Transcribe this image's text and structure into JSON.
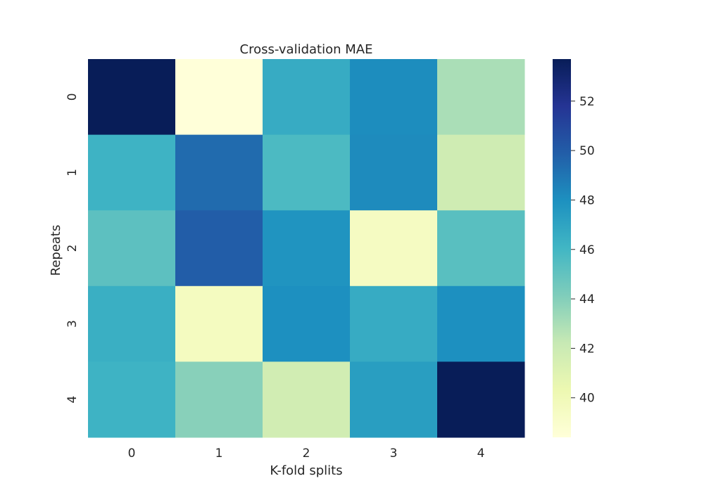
{
  "chart_data": {
    "type": "heatmap",
    "title": "Cross-validation MAE",
    "xlabel": "K-fold splits",
    "ylabel": "Repeats",
    "x_categories": [
      "0",
      "1",
      "2",
      "3",
      "4"
    ],
    "y_categories": [
      "0",
      "1",
      "2",
      "3",
      "4"
    ],
    "values": [
      [
        53.7,
        38.4,
        46.6,
        48.1,
        43.0
      ],
      [
        46.2,
        49.4,
        45.7,
        48.2,
        41.8
      ],
      [
        45.2,
        49.9,
        47.8,
        39.5,
        45.3
      ],
      [
        46.4,
        39.6,
        48.0,
        46.6,
        48.0
      ],
      [
        46.2,
        43.9,
        41.7,
        47.3,
        53.7
      ]
    ],
    "colormap": "YlGnBu",
    "colorbar": {
      "range": [
        38.4,
        53.7
      ],
      "ticks": [
        40,
        42,
        44,
        46,
        48,
        50,
        52
      ]
    },
    "grid": false,
    "legend": "colorbar-right"
  }
}
